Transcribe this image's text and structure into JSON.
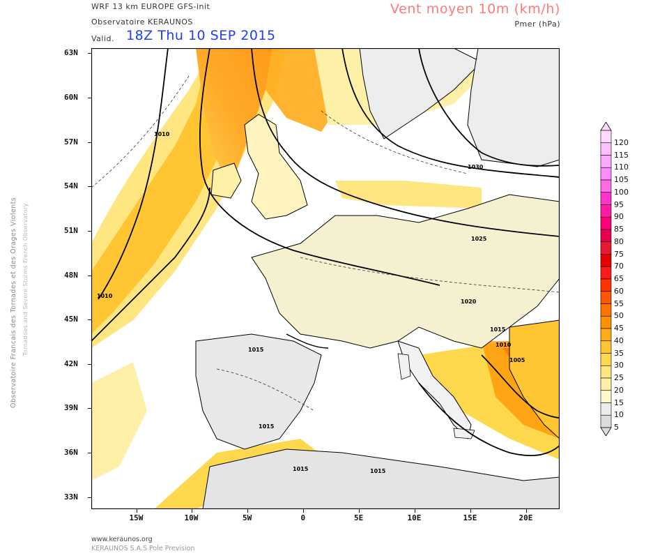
{
  "header": {
    "model": "WRF 13 km EUROPE   GFS-init",
    "observatory": "Observatoire KERAUNOS",
    "valid_label": "Valid.",
    "valid_date": "18Z Thu 10 SEP 2015",
    "variable_title": "Vent moyen 10m (km/h)",
    "variable_subtitle": "Pmer (hPa)"
  },
  "side": {
    "title": "Observatoire Francais des Tornades et des Orages Violents",
    "subtitle": "Tornadoes and Severe Storms French Observatory"
  },
  "map": {
    "lat_labels": [
      "63N",
      "60N",
      "57N",
      "54N",
      "51N",
      "48N",
      "45N",
      "42N",
      "39N",
      "36N",
      "33N"
    ],
    "lon_labels": [
      "15W",
      "10W",
      "5W",
      "0",
      "5E",
      "10E",
      "15E",
      "20E"
    ],
    "isobar_labels": [
      "1010",
      "1010",
      "1030",
      "1025",
      "1020",
      "1015",
      "1010",
      "1005",
      "1015",
      "1015",
      "1015",
      "1015"
    ],
    "colors": {
      "land": "#d8d8d8",
      "sea": "#ffffff",
      "coast": "#000000"
    }
  },
  "colorbar": {
    "labels": [
      "120",
      "115",
      "110",
      "105",
      "100",
      "95",
      "90",
      "85",
      "80",
      "75",
      "70",
      "65",
      "60",
      "55",
      "50",
      "45",
      "40",
      "35",
      "30",
      "25",
      "20",
      "15",
      "10",
      "5"
    ],
    "colors": [
      "#ffd9ff",
      "#ffbfff",
      "#ffa8ff",
      "#ff8cff",
      "#ff6be6",
      "#ff33cc",
      "#ff1aa3",
      "#ff007a",
      "#e6004d",
      "#e61a33",
      "#e60000",
      "#ff1a1a",
      "#ff3300",
      "#ff5500",
      "#ff7300",
      "#ff9100",
      "#ffab1a",
      "#ffc533",
      "#ffd94d",
      "#ffe680",
      "#fff0a8",
      "#fff8cc",
      "#ececec",
      "#dcdcdc"
    ]
  },
  "footer": {
    "url": "www.keraunos.org",
    "company": "KERAUNOS S.A.S Pole Prevision"
  }
}
